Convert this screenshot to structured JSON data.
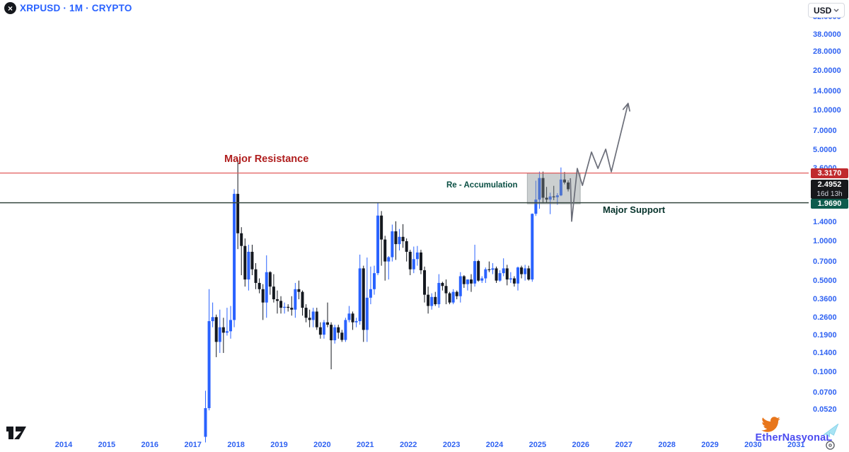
{
  "header": {
    "symbol_title": "XRPUSD · 1M · CRYPTO",
    "logo_glyph": "×",
    "currency_button": "USD"
  },
  "annotations": {
    "resistance_label": "Major Resistance",
    "accumulation_label": "Re - Accumulation",
    "support_label": "Major Support"
  },
  "badges": {
    "resistance_price": "3.3170",
    "last_price": "2.4952",
    "countdown": "16d 13h",
    "support_price": "1.9690"
  },
  "watermark": {
    "name": "EtherNasyonaL"
  },
  "icons": {
    "symbol": "xrp-logo-icon",
    "currency_chevron": "chevron-down-icon",
    "watermark_left": "twitter-bird-icon",
    "watermark_right": "paper-plane-icon",
    "bottom_left": "tradingview-logo",
    "bottom_right": "settings-icon"
  },
  "colors": {
    "up": "#2962ff",
    "down": "#14181f",
    "resistance_line": "#e25d5d",
    "support_line": "#35463f",
    "zone_fill": "rgba(130,140,142,0.42)",
    "zone_border": "rgba(105,115,117,0.45)",
    "projection": "#6b6e79",
    "axis_text": "#2f62f2"
  },
  "chart_data": {
    "type": "candlestick",
    "symbol": "XRPUSD",
    "timeframe": "1M",
    "exchange": "CRYPTO",
    "y_scale": "log",
    "y_axis_ticks": [
      52,
      38,
      28,
      20,
      14,
      10,
      7,
      5,
      3.6,
      2.6,
      1.9,
      1.4,
      1.0,
      0.7,
      0.5,
      0.36,
      0.26,
      0.19,
      0.14,
      0.1,
      0.07,
      0.052
    ],
    "x_axis_years": [
      2014,
      2015,
      2016,
      2017,
      2018,
      2019,
      2020,
      2021,
      2022,
      2023,
      2024,
      2025,
      2026,
      2027,
      2028,
      2029,
      2030,
      2031
    ],
    "levels": {
      "resistance": {
        "price": 3.317,
        "label": "Major Resistance"
      },
      "support": {
        "price": 1.969,
        "label": "Major Support"
      }
    },
    "last": {
      "price": 2.4952,
      "countdown": "16d 13h"
    },
    "accumulation_zone": {
      "label": "Re - Accumulation",
      "from": 2024.76,
      "to": 2025.99,
      "top": 3.317,
      "bottom": 1.93
    },
    "projection_path": [
      [
        2025.76,
        3.03
      ],
      [
        2025.79,
        1.42
      ],
      [
        2025.92,
        3.6
      ],
      [
        2026.04,
        2.67
      ],
      [
        2026.25,
        4.8
      ],
      [
        2026.4,
        3.6
      ],
      [
        2026.58,
        5.05
      ],
      [
        2026.71,
        3.39
      ],
      [
        2027.1,
        11.3
      ]
    ],
    "candles": [
      [
        "2017-04",
        0.032,
        0.072,
        0.029,
        0.053
      ],
      [
        "2017-05",
        0.053,
        0.43,
        0.051,
        0.245
      ],
      [
        "2017-06",
        0.245,
        0.34,
        0.22,
        0.263
      ],
      [
        "2017-07",
        0.263,
        0.275,
        0.13,
        0.17
      ],
      [
        "2017-08",
        0.17,
        0.3,
        0.14,
        0.22
      ],
      [
        "2017-09",
        0.22,
        0.26,
        0.14,
        0.2
      ],
      [
        "2017-10",
        0.2,
        0.31,
        0.19,
        0.205
      ],
      [
        "2017-11",
        0.205,
        0.32,
        0.18,
        0.25
      ],
      [
        "2017-12",
        0.25,
        2.5,
        0.22,
        2.3
      ],
      [
        "2018-01",
        2.3,
        4.2,
        0.87,
        1.15
      ],
      [
        "2018-02",
        1.15,
        1.28,
        0.55,
        0.92
      ],
      [
        "2018-03",
        0.92,
        1.05,
        0.45,
        0.51
      ],
      [
        "2018-04",
        0.51,
        0.94,
        0.42,
        0.83
      ],
      [
        "2018-05",
        0.83,
        0.94,
        0.55,
        0.61
      ],
      [
        "2018-06",
        0.61,
        0.68,
        0.43,
        0.48
      ],
      [
        "2018-07",
        0.48,
        0.52,
        0.4,
        0.43
      ],
      [
        "2018-08",
        0.43,
        0.47,
        0.25,
        0.34
      ],
      [
        "2018-09",
        0.34,
        0.78,
        0.26,
        0.58
      ],
      [
        "2018-10",
        0.58,
        0.59,
        0.39,
        0.45
      ],
      [
        "2018-11",
        0.45,
        0.56,
        0.34,
        0.36
      ],
      [
        "2018-12",
        0.36,
        0.42,
        0.28,
        0.35
      ],
      [
        "2019-01",
        0.35,
        0.38,
        0.28,
        0.31
      ],
      [
        "2019-02",
        0.31,
        0.34,
        0.28,
        0.315
      ],
      [
        "2019-03",
        0.315,
        0.33,
        0.29,
        0.31
      ],
      [
        "2019-04",
        0.31,
        0.38,
        0.27,
        0.3
      ],
      [
        "2019-05",
        0.3,
        0.48,
        0.26,
        0.43
      ],
      [
        "2019-06",
        0.43,
        0.5,
        0.36,
        0.41
      ],
      [
        "2019-07",
        0.41,
        0.42,
        0.27,
        0.31
      ],
      [
        "2019-08",
        0.31,
        0.33,
        0.24,
        0.26
      ],
      [
        "2019-09",
        0.26,
        0.3,
        0.22,
        0.25
      ],
      [
        "2019-10",
        0.25,
        0.31,
        0.22,
        0.29
      ],
      [
        "2019-11",
        0.29,
        0.31,
        0.21,
        0.22
      ],
      [
        "2019-12",
        0.22,
        0.24,
        0.18,
        0.193
      ],
      [
        "2020-01",
        0.193,
        0.25,
        0.18,
        0.24
      ],
      [
        "2020-02",
        0.24,
        0.34,
        0.22,
        0.23
      ],
      [
        "2020-03",
        0.23,
        0.24,
        0.105,
        0.175
      ],
      [
        "2020-04",
        0.175,
        0.23,
        0.165,
        0.22
      ],
      [
        "2020-05",
        0.22,
        0.23,
        0.18,
        0.2
      ],
      [
        "2020-06",
        0.2,
        0.21,
        0.17,
        0.176
      ],
      [
        "2020-07",
        0.176,
        0.26,
        0.17,
        0.25
      ],
      [
        "2020-08",
        0.25,
        0.32,
        0.24,
        0.28
      ],
      [
        "2020-09",
        0.28,
        0.29,
        0.21,
        0.24
      ],
      [
        "2020-10",
        0.24,
        0.26,
        0.22,
        0.245
      ],
      [
        "2020-11",
        0.245,
        0.79,
        0.23,
        0.62
      ],
      [
        "2020-12",
        0.62,
        0.65,
        0.17,
        0.21
      ],
      [
        "2021-01",
        0.21,
        0.75,
        0.17,
        0.37
      ],
      [
        "2021-02",
        0.37,
        0.64,
        0.33,
        0.43
      ],
      [
        "2021-03",
        0.43,
        0.65,
        0.39,
        0.57
      ],
      [
        "2021-04",
        0.57,
        1.96,
        0.55,
        1.57
      ],
      [
        "2021-05",
        1.57,
        1.7,
        0.65,
        1.03
      ],
      [
        "2021-06",
        1.03,
        1.1,
        0.5,
        0.7
      ],
      [
        "2021-07",
        0.7,
        0.77,
        0.51,
        0.755
      ],
      [
        "2021-08",
        0.755,
        1.34,
        0.7,
        1.19
      ],
      [
        "2021-09",
        1.19,
        1.42,
        0.72,
        0.95
      ],
      [
        "2021-10",
        0.95,
        1.24,
        0.85,
        1.08
      ],
      [
        "2021-11",
        1.08,
        1.35,
        0.89,
        1.0
      ],
      [
        "2021-12",
        1.0,
        1.05,
        0.7,
        0.83
      ],
      [
        "2022-01",
        0.83,
        0.86,
        0.55,
        0.61
      ],
      [
        "2022-02",
        0.61,
        0.91,
        0.57,
        0.73
      ],
      [
        "2022-03",
        0.73,
        0.92,
        0.65,
        0.82
      ],
      [
        "2022-04",
        0.82,
        0.86,
        0.56,
        0.6
      ],
      [
        "2022-05",
        0.6,
        0.64,
        0.34,
        0.39
      ],
      [
        "2022-06",
        0.39,
        0.45,
        0.28,
        0.32
      ],
      [
        "2022-07",
        0.32,
        0.4,
        0.3,
        0.375
      ],
      [
        "2022-08",
        0.375,
        0.41,
        0.32,
        0.33
      ],
      [
        "2022-09",
        0.33,
        0.56,
        0.31,
        0.48
      ],
      [
        "2022-10",
        0.48,
        0.49,
        0.42,
        0.455
      ],
      [
        "2022-11",
        0.455,
        0.51,
        0.33,
        0.4
      ],
      [
        "2022-12",
        0.4,
        0.41,
        0.33,
        0.34
      ],
      [
        "2023-01",
        0.34,
        0.43,
        0.33,
        0.41
      ],
      [
        "2023-02",
        0.41,
        0.42,
        0.36,
        0.38
      ],
      [
        "2023-03",
        0.38,
        0.58,
        0.34,
        0.54
      ],
      [
        "2023-04",
        0.54,
        0.55,
        0.44,
        0.47
      ],
      [
        "2023-05",
        0.47,
        0.51,
        0.42,
        0.51
      ],
      [
        "2023-06",
        0.51,
        0.56,
        0.41,
        0.475
      ],
      [
        "2023-07",
        0.475,
        0.94,
        0.45,
        0.705
      ],
      [
        "2023-08",
        0.705,
        0.72,
        0.49,
        0.5
      ],
      [
        "2023-09",
        0.5,
        0.54,
        0.48,
        0.52
      ],
      [
        "2023-10",
        0.52,
        0.63,
        0.48,
        0.61
      ],
      [
        "2023-11",
        0.61,
        0.7,
        0.58,
        0.605
      ],
      [
        "2023-12",
        0.605,
        0.68,
        0.56,
        0.62
      ],
      [
        "2024-01",
        0.62,
        0.64,
        0.48,
        0.5
      ],
      [
        "2024-02",
        0.5,
        0.6,
        0.49,
        0.57
      ],
      [
        "2024-03",
        0.57,
        0.74,
        0.54,
        0.62
      ],
      [
        "2024-04",
        0.62,
        0.66,
        0.46,
        0.51
      ],
      [
        "2024-05",
        0.51,
        0.58,
        0.48,
        0.52
      ],
      [
        "2024-06",
        0.52,
        0.54,
        0.45,
        0.475
      ],
      [
        "2024-07",
        0.475,
        0.64,
        0.42,
        0.63
      ],
      [
        "2024-08",
        0.63,
        0.65,
        0.52,
        0.56
      ],
      [
        "2024-09",
        0.56,
        0.66,
        0.5,
        0.62
      ],
      [
        "2024-10",
        0.62,
        0.65,
        0.5,
        0.51
      ],
      [
        "2024-11",
        0.51,
        1.63,
        0.49,
        1.62
      ],
      [
        "2024-12",
        1.62,
        2.9,
        1.56,
        2.08
      ],
      [
        "2025-01",
        2.08,
        3.4,
        1.77,
        3.04
      ],
      [
        "2025-02",
        3.04,
        3.4,
        1.95,
        2.15
      ],
      [
        "2025-03",
        2.15,
        2.6,
        1.98,
        2.08
      ],
      [
        "2025-04",
        2.08,
        2.35,
        1.61,
        2.2
      ],
      [
        "2025-05",
        2.2,
        2.65,
        2.06,
        2.17
      ],
      [
        "2025-06",
        2.17,
        2.33,
        1.9,
        2.24
      ],
      [
        "2025-07",
        2.24,
        3.66,
        2.21,
        2.96
      ],
      [
        "2025-08",
        2.96,
        3.38,
        2.72,
        2.81
      ],
      [
        "2025-09",
        2.81,
        2.92,
        2.4,
        2.4952
      ]
    ]
  }
}
